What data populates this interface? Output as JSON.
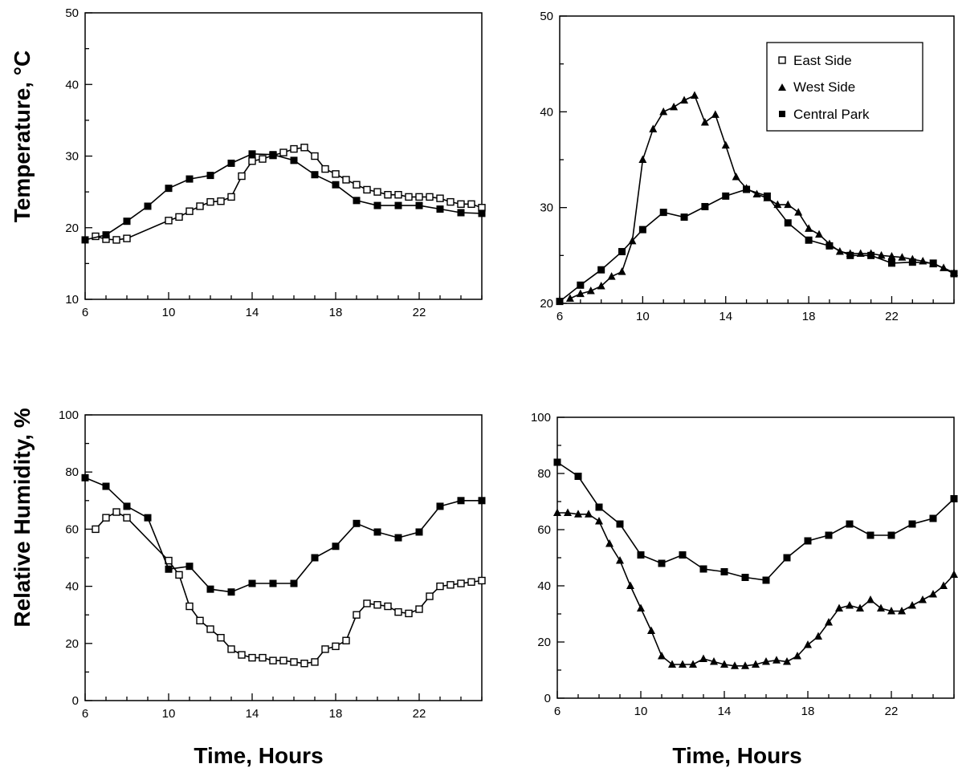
{
  "labels": {
    "temperature_axis": "Temperature, °C",
    "humidity_axis": "Relative Humidity, %",
    "time_axis": "Time, Hours"
  },
  "legend": {
    "east": "East Side",
    "west": "West Side",
    "central": "Central Park"
  },
  "chart_data": [
    {
      "type": "line",
      "ylabel": "Temperature, °C",
      "xlim": [
        6,
        25
      ],
      "ylim": [
        10,
        50
      ],
      "xticks": [
        6,
        10,
        14,
        18,
        22
      ],
      "yticks": [
        10,
        20,
        30,
        40,
        50
      ],
      "series": [
        {
          "name": "East Side",
          "marker": "open-square",
          "x": [
            6.5,
            7.0,
            7.5,
            8.0,
            10.0,
            10.5,
            11.0,
            11.5,
            12.0,
            12.5,
            13.0,
            13.5,
            14.0,
            14.5,
            15.0,
            15.5,
            16.0,
            16.5,
            17.0,
            17.5,
            18.0,
            18.5,
            19.0,
            19.5,
            20.0,
            20.5,
            21.0,
            21.5,
            22.0,
            22.5,
            23.0,
            23.5,
            24.0,
            24.5,
            25.0
          ],
          "y": [
            18.8,
            18.4,
            18.3,
            18.5,
            21.0,
            21.5,
            22.3,
            23.0,
            23.6,
            23.7,
            24.3,
            27.2,
            29.3,
            29.6,
            30.1,
            30.5,
            31.0,
            31.2,
            30.0,
            28.2,
            27.5,
            26.7,
            26.0,
            25.3,
            25.0,
            24.6,
            24.6,
            24.3,
            24.3,
            24.3,
            24.1,
            23.6,
            23.3,
            23.3,
            22.8
          ]
        },
        {
          "name": "Central Park",
          "marker": "filled-square",
          "x": [
            6,
            7,
            8,
            9,
            10,
            11,
            12,
            13,
            14,
            15,
            16,
            17,
            18,
            19,
            20,
            21,
            22,
            23,
            24,
            25
          ],
          "y": [
            18.3,
            19.0,
            20.9,
            23.0,
            25.5,
            26.8,
            27.3,
            29.0,
            30.3,
            30.2,
            29.4,
            27.4,
            26.0,
            23.8,
            23.1,
            23.1,
            23.1,
            22.6,
            22.1,
            22.0
          ]
        }
      ]
    },
    {
      "type": "line",
      "ylabel": "",
      "xlim": [
        6,
        25
      ],
      "ylim": [
        20,
        50
      ],
      "xticks": [
        6,
        10,
        14,
        18,
        22
      ],
      "yticks": [
        20,
        30,
        40,
        50
      ],
      "legend": "top-right",
      "series": [
        {
          "name": "West Side",
          "marker": "filled-triangle",
          "x": [
            6.5,
            7.0,
            7.5,
            8.0,
            8.5,
            9.0,
            9.5,
            10.0,
            10.5,
            11.0,
            11.5,
            12.0,
            12.5,
            13.0,
            13.5,
            14.0,
            14.5,
            15.0,
            15.5,
            16.0,
            16.5,
            17.0,
            17.5,
            18.0,
            18.5,
            19.0,
            19.5,
            20.0,
            20.5,
            21.0,
            21.5,
            22.0,
            22.5,
            23.0,
            23.5,
            24.0,
            24.5,
            25.0
          ],
          "y": [
            20.5,
            21.0,
            21.3,
            21.8,
            22.8,
            23.3,
            26.5,
            35.0,
            38.2,
            40.0,
            40.5,
            41.2,
            41.7,
            38.9,
            39.7,
            36.5,
            33.2,
            32.0,
            31.4,
            31.0,
            30.3,
            30.3,
            29.5,
            27.8,
            27.2,
            26.2,
            25.4,
            25.2,
            25.2,
            25.2,
            25.0,
            24.9,
            24.8,
            24.6,
            24.4,
            24.1,
            23.7,
            23.2
          ]
        },
        {
          "name": "Central Park",
          "marker": "filled-square",
          "x": [
            6,
            7,
            8,
            9,
            10,
            11,
            12,
            13,
            14,
            15,
            16,
            17,
            18,
            19,
            20,
            21,
            22,
            23,
            24,
            25
          ],
          "y": [
            20.2,
            21.9,
            23.5,
            25.4,
            27.7,
            29.5,
            29.0,
            30.1,
            31.2,
            31.9,
            31.2,
            28.4,
            26.6,
            26.0,
            25.0,
            25.0,
            24.2,
            24.3,
            24.2,
            23.1
          ]
        }
      ]
    },
    {
      "type": "line",
      "ylabel": "Relative Humidity, %",
      "xlabel": "Time, Hours",
      "xlim": [
        6,
        25
      ],
      "ylim": [
        0,
        100
      ],
      "xticks": [
        6,
        10,
        14,
        18,
        22
      ],
      "yticks": [
        0,
        20,
        40,
        60,
        80,
        100
      ],
      "series": [
        {
          "name": "East Side",
          "marker": "open-square",
          "x": [
            6.5,
            7.0,
            7.5,
            8.0,
            10.0,
            10.5,
            11.0,
            11.5,
            12.0,
            12.5,
            13.0,
            13.5,
            14.0,
            14.5,
            15.0,
            15.5,
            16.0,
            16.5,
            17.0,
            17.5,
            18.0,
            18.5,
            19.0,
            19.5,
            20.0,
            20.5,
            21.0,
            21.5,
            22.0,
            22.5,
            23.0,
            23.5,
            24.0,
            24.5,
            25.0
          ],
          "y": [
            60,
            64,
            66,
            64,
            49,
            44,
            33,
            28,
            25,
            22,
            18,
            16,
            15,
            15,
            14,
            14,
            13.5,
            13,
            13.5,
            18,
            19,
            21,
            30,
            34,
            33.5,
            33,
            31,
            30.5,
            32,
            36.5,
            40,
            40.5,
            41,
            41.5,
            42
          ]
        },
        {
          "name": "Central Park",
          "marker": "filled-square",
          "x": [
            6,
            7,
            8,
            9,
            10,
            11,
            12,
            13,
            14,
            15,
            16,
            17,
            18,
            19,
            20,
            21,
            22,
            23,
            24,
            25
          ],
          "y": [
            78,
            75,
            68,
            64,
            46,
            47,
            39,
            38,
            41,
            41,
            41,
            50,
            54,
            62,
            59,
            57,
            59,
            68,
            70,
            70
          ]
        }
      ]
    },
    {
      "type": "line",
      "ylabel": "",
      "xlabel": "Time, Hours",
      "xlim": [
        6,
        25
      ],
      "ylim": [
        0,
        100
      ],
      "xticks": [
        6,
        10,
        14,
        18,
        22
      ],
      "yticks": [
        0,
        20,
        40,
        60,
        80,
        100
      ],
      "series": [
        {
          "name": "West Side",
          "marker": "filled-triangle",
          "x": [
            6.0,
            6.5,
            7.0,
            7.5,
            8.0,
            8.5,
            9.0,
            9.5,
            10.0,
            10.5,
            11.0,
            11.5,
            12.0,
            12.5,
            13.0,
            13.5,
            14.0,
            14.5,
            15.0,
            15.5,
            16.0,
            16.5,
            17.0,
            17.5,
            18.0,
            18.5,
            19.0,
            19.5,
            20.0,
            20.5,
            21.0,
            21.5,
            22.0,
            22.5,
            23.0,
            23.5,
            24.0,
            24.5,
            25.0
          ],
          "y": [
            66,
            66,
            65.5,
            65.5,
            63,
            55,
            49,
            40,
            32,
            24,
            15,
            12,
            12,
            12,
            14,
            13,
            12,
            11.5,
            11.5,
            12,
            13,
            13.5,
            13,
            15,
            19,
            22,
            27,
            32,
            33,
            32,
            35,
            32,
            31,
            31,
            33,
            35,
            37,
            40,
            44
          ]
        },
        {
          "name": "Central Park",
          "marker": "filled-square",
          "x": [
            6,
            7,
            8,
            9,
            10,
            11,
            12,
            13,
            14,
            15,
            16,
            17,
            18,
            19,
            20,
            21,
            22,
            23,
            24,
            25
          ],
          "y": [
            84,
            79,
            68,
            62,
            51,
            48,
            51,
            46,
            45,
            43,
            42,
            50,
            56,
            58,
            62,
            58,
            58,
            62,
            64,
            71
          ]
        }
      ]
    }
  ]
}
